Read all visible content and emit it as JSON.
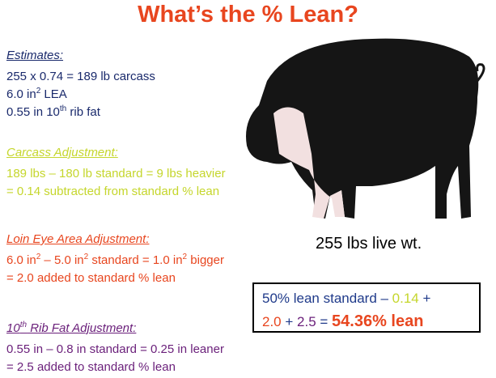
{
  "title": "What’s the % Lean?",
  "sections": [
    {
      "color": "#1a2a6c",
      "heading": [
        "Estimates:"
      ],
      "lines": [
        [
          "255 x 0.74 = 189 lb carcass"
        ],
        [
          "6.0 in",
          {
            "sup": "2"
          },
          " LEA"
        ],
        [
          "0.55 in 10",
          {
            "sup": "th"
          },
          " rib fat"
        ]
      ]
    },
    {
      "color": "#c5d62c",
      "heading": [
        "Carcass Adjustment:"
      ],
      "lines": [
        [
          "189 lbs – 180 lb standard = 9 lbs heavier"
        ],
        [
          "= 0.14 subtracted from standard % lean"
        ]
      ]
    },
    {
      "color": "#e8461f",
      "heading": [
        "Loin Eye Area Adjustment:"
      ],
      "lines": [
        [
          "6.0 in",
          {
            "sup": "2"
          },
          " – 5.0 in",
          {
            "sup": "2"
          },
          " standard = 1.0 in",
          {
            "sup": "2"
          },
          " bigger"
        ],
        [
          "= 2.0 added to standard % lean"
        ]
      ]
    },
    {
      "color": "#6a1f7a",
      "heading": [
        "10",
        {
          "sup": "th"
        },
        " Rib Fat Adjustment:"
      ],
      "lines": [
        [
          "0.55 in – 0.8 in standard = 0.25 in leaner"
        ],
        [
          "= 2.5 added to standard % lean"
        ]
      ]
    }
  ],
  "image_caption": "255 lbs live wt.",
  "summary": [
    [
      {
        "text": "50% lean standard – ",
        "color": "#1f3a8a"
      },
      {
        "text": "0.14",
        "color": "#c5d62c"
      },
      {
        "text": " +",
        "color": "#1f3a8a"
      }
    ],
    [
      {
        "text": "2.0",
        "color": "#e8461f"
      },
      {
        "text": " + ",
        "color": "#1f3a8a"
      },
      {
        "text": "2.5",
        "color": "#6a1f7a"
      },
      {
        "text": " = ",
        "color": "#1f3a8a"
      },
      {
        "text": "54.36% lean",
        "color": "#e8461f",
        "bold": true
      }
    ]
  ]
}
